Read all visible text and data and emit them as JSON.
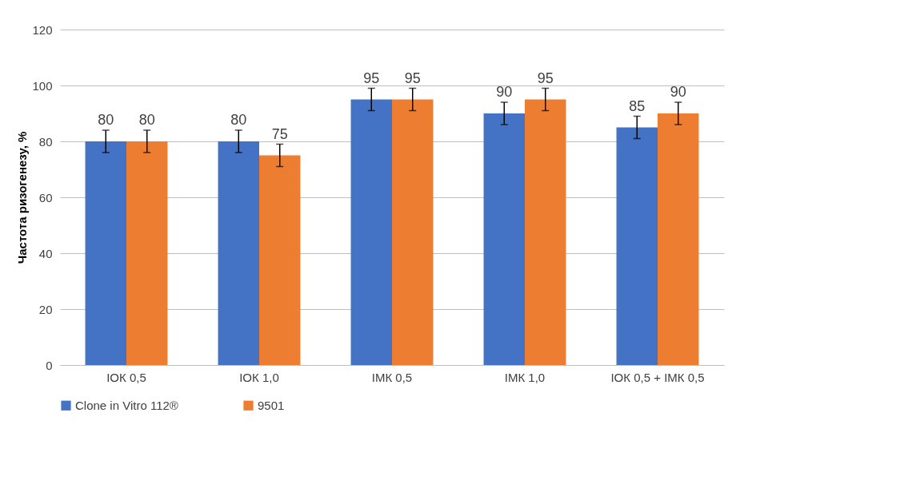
{
  "chart_data": {
    "type": "bar",
    "ylabel": "Частота ризогенезу, %",
    "categories": [
      "ІОК 0,5",
      "ІОК 1,0",
      "ІМК 0,5",
      "ІМК 1,0",
      "ІОК 0,5 + ІМК 0,5"
    ],
    "series": [
      {
        "name": "Clone in Vitro 112®",
        "color": "#4472c4",
        "values": [
          80,
          80,
          95,
          90,
          85
        ],
        "errors": [
          4,
          4,
          4,
          4,
          4
        ]
      },
      {
        "name": "9501",
        "color": "#ed7d31",
        "values": [
          80,
          75,
          95,
          95,
          90
        ],
        "errors": [
          4,
          4,
          4,
          4,
          4
        ]
      }
    ],
    "ylim": [
      0,
      120
    ],
    "yticks": [
      0,
      20,
      40,
      60,
      80,
      100,
      120
    ],
    "grid": "y",
    "legend": "bottom",
    "data_labels": true
  }
}
